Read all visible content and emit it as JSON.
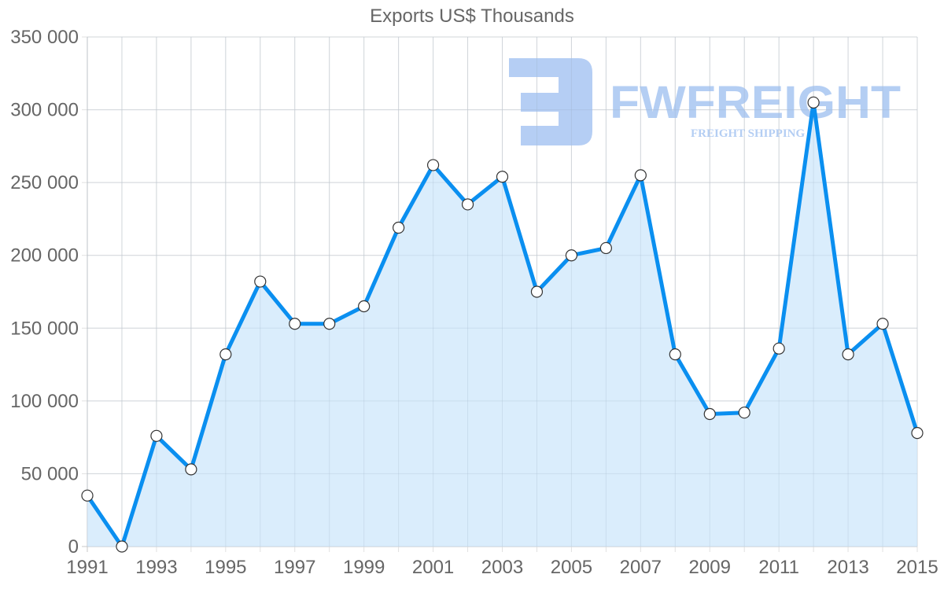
{
  "chart_data": {
    "type": "area",
    "title": "Exports US$ Thousands",
    "xlabel": "",
    "ylabel": "",
    "x": [
      1991,
      1992,
      1993,
      1994,
      1995,
      1996,
      1997,
      1998,
      1999,
      2000,
      2001,
      2002,
      2003,
      2004,
      2005,
      2006,
      2007,
      2008,
      2009,
      2010,
      2011,
      2012,
      2013,
      2014,
      2015
    ],
    "series": [
      {
        "name": "Exports US$ Thousands",
        "values": [
          35000,
          0,
          76000,
          53000,
          132000,
          182000,
          153000,
          153000,
          165000,
          219000,
          262000,
          235000,
          254000,
          175000,
          200000,
          205000,
          255000,
          132000,
          91000,
          92000,
          136000,
          305000,
          132000,
          153000,
          78000
        ]
      }
    ],
    "ylim": [
      0,
      350000
    ],
    "y_ticks": [
      "0",
      "50 000",
      "100 000",
      "150 000",
      "200 000",
      "250 000",
      "300 000",
      "350 000"
    ],
    "x_ticks": [
      "1991",
      "1993",
      "1995",
      "1997",
      "1999",
      "2001",
      "2003",
      "2005",
      "2007",
      "2009",
      "2011",
      "2013",
      "2015"
    ],
    "grid": true,
    "legend": "none",
    "line_color": "#0a8ff0",
    "fill_color": "#d8ecfc"
  },
  "watermark": {
    "brand": "FWFREIGHT",
    "tagline": "FREIGHT SHIPPING",
    "color": "#a8c6f2"
  }
}
